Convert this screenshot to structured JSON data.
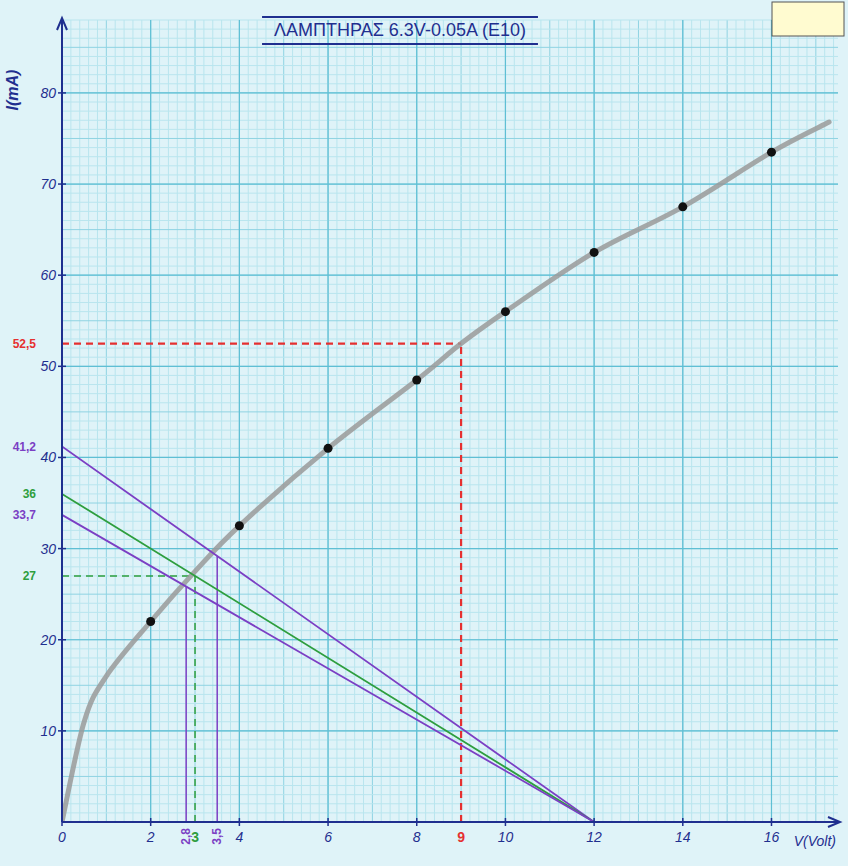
{
  "chart_data": {
    "type": "line",
    "title": "ΛΑΜΠΤΗΡΑΣ 6.3V-0.05A (E10)",
    "x_label": "V(Volt)",
    "y_label": "I(mA)",
    "xlim": [
      0,
      17.5
    ],
    "xticks": [
      0,
      2,
      4,
      6,
      8,
      10,
      12,
      14,
      16
    ],
    "ylim": [
      0,
      88
    ],
    "yticks": [
      10,
      20,
      30,
      40,
      50,
      60,
      70,
      80
    ],
    "grid": true,
    "series": [
      {
        "type": "line",
        "color": "#9a9a9a",
        "line_style": "solid",
        "x": [
          0,
          0.5,
          1,
          2,
          3,
          4,
          6,
          8,
          9,
          10,
          12,
          14,
          16,
          17.3
        ],
        "values": [
          0,
          11,
          16,
          22,
          27.5,
          32.5,
          41,
          48.5,
          52.5,
          56,
          62.5,
          67.5,
          73.5,
          76.8
        ]
      },
      {
        "type": "scatter",
        "color": "#111111",
        "marker": "circle",
        "x": [
          2,
          4,
          6,
          8,
          10,
          12,
          14,
          16
        ],
        "values": [
          22,
          32.5,
          41,
          48.5,
          56,
          62.5,
          67.5,
          73.5
        ]
      },
      {
        "type": "line",
        "color": "#7b3fc4",
        "line_style": "solid",
        "x": [
          0,
          12
        ],
        "values": [
          41.2,
          0
        ]
      },
      {
        "type": "line",
        "color": "#2e9e3e",
        "line_style": "solid",
        "x": [
          0,
          12
        ],
        "values": [
          36,
          0
        ]
      },
      {
        "type": "line",
        "color": "#7b3fc4",
        "line_style": "solid",
        "x": [
          0,
          12
        ],
        "values": [
          33.7,
          0
        ]
      }
    ],
    "annotations": [
      {
        "x": 9,
        "y": 52.5,
        "x_label": "9",
        "y_label": "52,5",
        "color": "#e53030",
        "line_style": "dashed"
      },
      {
        "x": 3,
        "y": 27,
        "x_label": "3",
        "y_label": "27",
        "color": "#2e9e3e",
        "line_style": "dashed"
      },
      {
        "x": 2.8,
        "y": 25.8,
        "x_label": "2,8",
        "color": "#7b3fc4",
        "line_style": "solid"
      },
      {
        "x": 3.5,
        "y": 29.2,
        "x_label": "3,5",
        "color": "#7b3fc4",
        "line_style": "solid"
      },
      {
        "y": 41.2,
        "y_label": "41,2",
        "color": "#7b3fc4"
      },
      {
        "y": 36,
        "y_label": "36",
        "color": "#2e9e3e"
      },
      {
        "y": 33.7,
        "y_label": "33,7",
        "color": "#7b3fc4"
      }
    ]
  }
}
